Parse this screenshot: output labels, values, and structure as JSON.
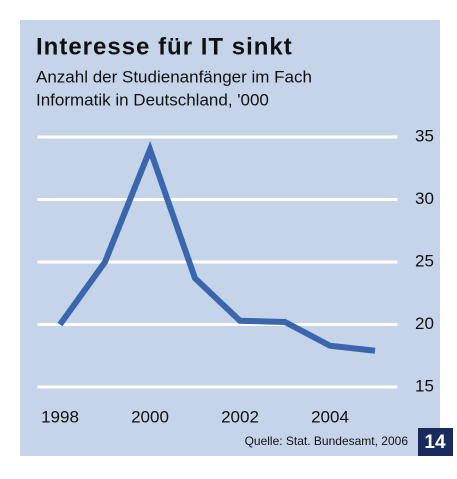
{
  "chart_data": {
    "type": "line",
    "title": "Interesse für IT sinkt",
    "subtitle": [
      "Anzahl der Studienanfänger im Fach",
      "Informatik in Deutschland, '000"
    ],
    "source": "Quelle: Stat. Bundesamt, 2006",
    "page_number": "14",
    "x": [
      1998,
      1999,
      2000,
      2001,
      2002,
      2003,
      2004,
      2005
    ],
    "series": [
      {
        "name": "Studienanfänger",
        "color": "#3a66ad",
        "values": [
          20,
          25,
          34,
          23.7,
          20.3,
          20.2,
          18.3,
          17.9
        ]
      }
    ],
    "xlim": [
      1997.5,
      2005.5
    ],
    "xticks": [
      1998,
      2000,
      2002,
      2004
    ],
    "ylim": [
      15,
      35
    ],
    "yticks": [
      15,
      20,
      25,
      30,
      35
    ],
    "grid": true
  }
}
